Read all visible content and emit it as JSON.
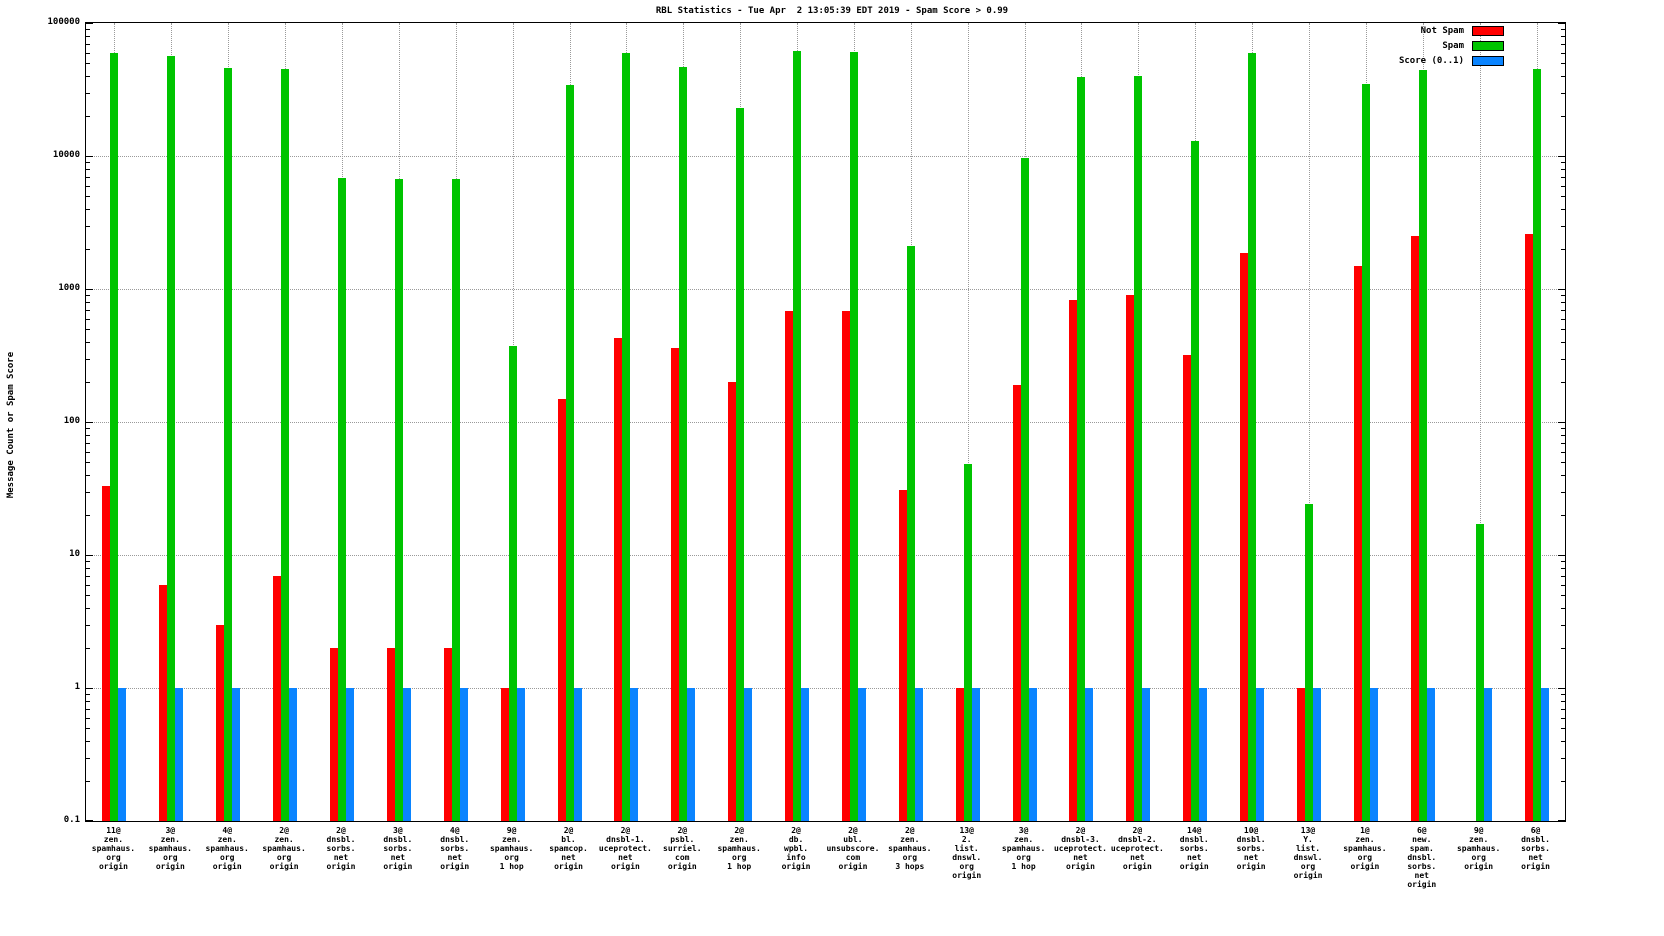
{
  "chart_data": {
    "type": "bar",
    "scale": "log",
    "title": "RBL Statistics - Tue Apr  2 13:05:39 EDT 2019 - Spam Score > 0.99",
    "ylabel": "Message Count or Spam Score",
    "ylim": [
      0.1,
      100000
    ],
    "ytick_labels": [
      "0.1",
      "1",
      "10",
      "100",
      "1000",
      "10000",
      "100000"
    ],
    "grid": true,
    "legend_position": "top-right",
    "legend": [
      {
        "name": "Not Spam",
        "color": "#ff0000"
      },
      {
        "name": "Spam",
        "color": "#00c400"
      },
      {
        "name": "Score (0..1)",
        "color": "#0a84ff"
      }
    ],
    "categories": [
      "11@\nzen.\nspamhaus.\norg\norigin",
      "3@\nzen.\nspamhaus.\norg\norigin",
      "4@\nzen.\nspamhaus.\norg\norigin",
      "2@\nzen.\nspamhaus.\norg\norigin",
      "2@\ndnsbl.\nsorbs.\nnet\norigin",
      "3@\ndnsbl.\nsorbs.\nnet\norigin",
      "4@\ndnsbl.\nsorbs.\nnet\norigin",
      "9@\nzen.\nspamhaus.\norg\n1 hop",
      "2@\nbl.\nspamcop.\nnet\norigin",
      "2@\ndnsbl-1.\nuceprotect.\nnet\norigin",
      "2@\npsbl.\nsurriel.\ncom\norigin",
      "2@\nzen.\nspamhaus.\norg\n1 hop",
      "2@\ndb.\nwpbl.\ninfo\norigin",
      "2@\nubl.\nunsubscore.\ncom\norigin",
      "2@\nzen.\nspamhaus.\norg\n3 hops",
      "13@\n2.\nlist.\ndnswl.\norg\norigin",
      "3@\nzen.\nspamhaus.\norg\n1 hop",
      "2@\ndnsbl-3.\nuceprotect.\nnet\norigin",
      "2@\ndnsbl-2.\nuceprotect.\nnet\norigin",
      "14@\ndnsbl.\nsorbs.\nnet\norigin",
      "10@\ndnsbl.\nsorbs.\nnet\norigin",
      "13@\nY.\nlist.\ndnswl.\norg\norigin",
      "1@\nzen.\nspamhaus.\norg\norigin",
      "6@\nnew.\nspam.\ndnsbl.\nsorbs.\nnet\norigin",
      "9@\nzen.\nspamhaus.\norg\norigin",
      "6@\ndnsbl.\nsorbs.\nnet\norigin"
    ],
    "series": [
      {
        "name": "Not Spam",
        "color": "#ff0000",
        "values": [
          33,
          6,
          3,
          7,
          2,
          2,
          2,
          1,
          150,
          430,
          360,
          200,
          680,
          680,
          31,
          1,
          190,
          820,
          900,
          320,
          1850,
          1,
          1480,
          2500,
          null,
          2600
        ]
      },
      {
        "name": "Spam",
        "color": "#00c400",
        "values": [
          60000,
          56000,
          46000,
          45000,
          6800,
          6700,
          6700,
          370,
          34000,
          59000,
          47000,
          23000,
          62000,
          61000,
          2100,
          48,
          9600,
          39000,
          40000,
          13000,
          60000,
          24,
          35000,
          44000,
          17,
          45000
        ]
      },
      {
        "name": "Score (0..1)",
        "color": "#0a84ff",
        "values": [
          1,
          1,
          1,
          1,
          1,
          1,
          1,
          1,
          1,
          1,
          1,
          1,
          1,
          1,
          1,
          1,
          1,
          1,
          1,
          1,
          1,
          1,
          1,
          1,
          1,
          1
        ]
      }
    ]
  }
}
